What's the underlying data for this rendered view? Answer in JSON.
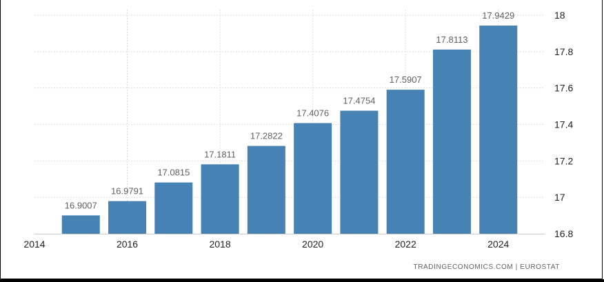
{
  "chart_data": {
    "type": "bar",
    "categories": [
      "2015",
      "2016",
      "2017",
      "2018",
      "2019",
      "2020",
      "2021",
      "2022",
      "2023",
      "2024"
    ],
    "values": [
      16.9007,
      16.9791,
      17.0815,
      17.1811,
      17.2822,
      17.4076,
      17.4754,
      17.5907,
      17.8113,
      17.9429
    ],
    "data_labels": [
      "16.9007",
      "16.9791",
      "17.0815",
      "17.1811",
      "17.2822",
      "17.4076",
      "17.4754",
      "17.5907",
      "17.8113",
      "17.9429"
    ],
    "x_ticks": [
      "2014",
      "2016",
      "2018",
      "2020",
      "2022",
      "2024"
    ],
    "y_ticks": [
      "16.8",
      "17",
      "17.2",
      "17.4",
      "17.6",
      "17.8",
      "18"
    ],
    "ylim": [
      16.8,
      18
    ],
    "xlim": [
      2014,
      2025
    ],
    "grid": true,
    "bar_color": "#4682b4",
    "grid_color": "#dddddd"
  },
  "source_text": "TRADINGECONOMICS.COM  |  EUROSTAT"
}
